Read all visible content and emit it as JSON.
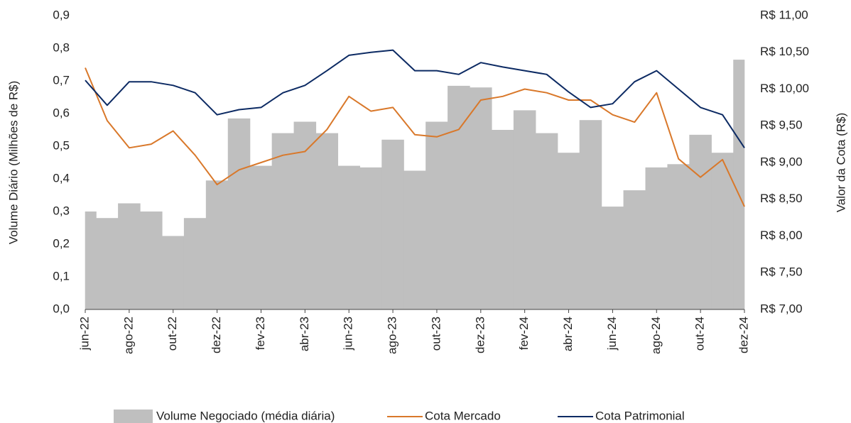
{
  "chart_data": {
    "type": "combo",
    "y_label": "Volume Diário (Milhões de R$)",
    "y2_label": "Valor da Cota (R$)",
    "categories": [
      "jun-22",
      null,
      "ago-22",
      null,
      "out-22",
      null,
      "dez-22",
      null,
      "fev-23",
      null,
      "abr-23",
      null,
      "jun-23",
      null,
      "ago-23",
      null,
      "out-23",
      null,
      "dez-23",
      null,
      "fev-24",
      null,
      "abr-24",
      null,
      "jun-24",
      null,
      "ago-24",
      null,
      "out-24",
      null,
      "dez-24"
    ],
    "series": [
      {
        "name": "Volume Negociado (média diária)",
        "type": "area",
        "color": "#bfbfbf",
        "values": [
          0.3,
          0.28,
          0.325,
          0.3,
          0.225,
          0.28,
          0.395,
          0.585,
          0.44,
          0.54,
          0.575,
          0.54,
          0.44,
          0.435,
          0.52,
          0.425,
          0.575,
          0.685,
          0.68,
          0.55,
          0.61,
          0.54,
          0.48,
          0.58,
          0.315,
          0.365,
          0.435,
          0.445,
          0.535,
          0.48,
          0.765
        ]
      },
      {
        "name": "Cota Mercado",
        "type": "line",
        "axis": "y2",
        "color": "#d9782a",
        "values": [
          10.29,
          9.57,
          9.2,
          9.25,
          9.43,
          9.1,
          8.7,
          8.9,
          9.0,
          9.1,
          9.15,
          9.45,
          9.9,
          9.7,
          9.75,
          9.38,
          9.35,
          9.45,
          9.85,
          9.9,
          10.0,
          9.95,
          9.85,
          9.85,
          9.65,
          9.55,
          9.95,
          9.05,
          8.8,
          9.04,
          8.4
        ]
      },
      {
        "name": "Cota Patrimonial",
        "type": "line",
        "axis": "y2",
        "color": "#0c2a63",
        "values": [
          10.12,
          9.78,
          10.1,
          10.1,
          10.05,
          9.95,
          9.65,
          9.72,
          9.75,
          9.95,
          10.05,
          10.25,
          10.46,
          10.5,
          10.53,
          10.25,
          10.25,
          10.2,
          10.36,
          10.3,
          10.25,
          10.2,
          9.96,
          9.75,
          9.8,
          10.1,
          10.25,
          10.0,
          9.75,
          9.65,
          9.2
        ]
      }
    ],
    "ylim": [
      0,
      0.9
    ],
    "yticks": [
      {
        "value": 0,
        "label": "0,0"
      },
      {
        "value": 0.1,
        "label": "0,1"
      },
      {
        "value": 0.2,
        "label": "0,2"
      },
      {
        "value": 0.3,
        "label": "0,3"
      },
      {
        "value": 0.4,
        "label": "0,4"
      },
      {
        "value": 0.5,
        "label": "0,5"
      },
      {
        "value": 0.6,
        "label": "0,6"
      },
      {
        "value": 0.7,
        "label": "0,7"
      },
      {
        "value": 0.8,
        "label": "0,8"
      },
      {
        "value": 0.9,
        "label": "0,9"
      }
    ],
    "y2lim": [
      7,
      11
    ],
    "y2ticks": [
      {
        "value": 7,
        "label": "R$ 7,00"
      },
      {
        "value": 7.5,
        "label": "R$ 7,50"
      },
      {
        "value": 8,
        "label": "R$ 8,00"
      },
      {
        "value": 8.5,
        "label": "R$ 8,50"
      },
      {
        "value": 9,
        "label": "R$ 9,00"
      },
      {
        "value": 9.5,
        "label": "R$ 9,50"
      },
      {
        "value": 10,
        "label": "R$ 10,00"
      },
      {
        "value": 10.5,
        "label": "R$ 10,50"
      },
      {
        "value": 11,
        "label": "R$ 11,00"
      }
    ],
    "legend": "bottom",
    "grid": false
  }
}
